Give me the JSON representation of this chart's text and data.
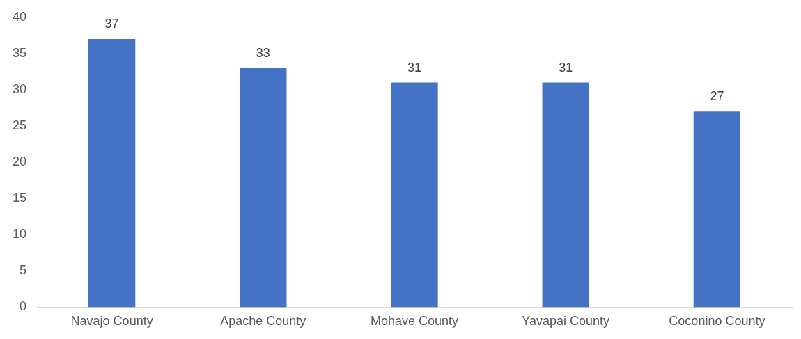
{
  "chart_data": {
    "type": "bar",
    "categories": [
      "Navajo County",
      "Apache County",
      "Mohave County",
      "Yavapai County",
      "Coconino County"
    ],
    "values": [
      37,
      33,
      31,
      31,
      27
    ],
    "color": "#4472c4",
    "ylim": [
      0,
      40
    ],
    "yticks": [
      0,
      5,
      10,
      15,
      20,
      25,
      30,
      35,
      40
    ],
    "grid": false,
    "data_labels": true,
    "legend": false
  }
}
